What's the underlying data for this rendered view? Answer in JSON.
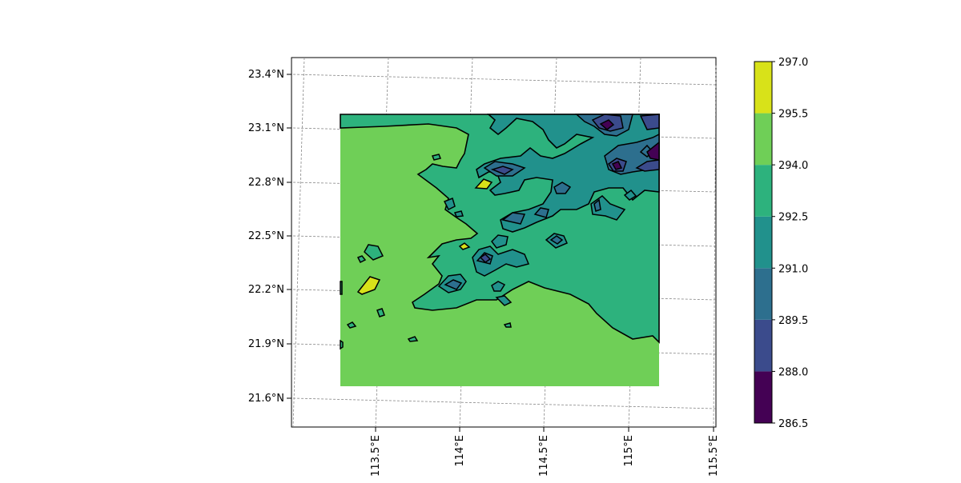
{
  "map": {
    "lat_labels": [
      "23.4°N",
      "23.1°N",
      "22.8°N",
      "22.5°N",
      "22.2°N",
      "21.9°N",
      "21.6°N"
    ],
    "lon_labels": [
      "113.5°E",
      "114°E",
      "114.5°E",
      "115°E",
      "115.5°E"
    ],
    "gridlines": true,
    "projection_note": "tilted lat/lon gridlines (projected map)"
  },
  "chart_data": {
    "type": "heatmap",
    "subtype": "filled contour map",
    "colorbar": {
      "levels": [
        286.5,
        288.0,
        289.5,
        291.0,
        292.5,
        294.0,
        295.5,
        297.0
      ],
      "tick_labels": [
        "297.0",
        "295.5",
        "294.0",
        "292.5",
        "291.0",
        "289.5",
        "288.0",
        "286.5"
      ],
      "colors": [
        "#440154",
        "#3b4b8c",
        "#2d6f8e",
        "#21918c",
        "#2db27d",
        "#6fcf57",
        "#d8e219"
      ],
      "placement": "right"
    }
  }
}
